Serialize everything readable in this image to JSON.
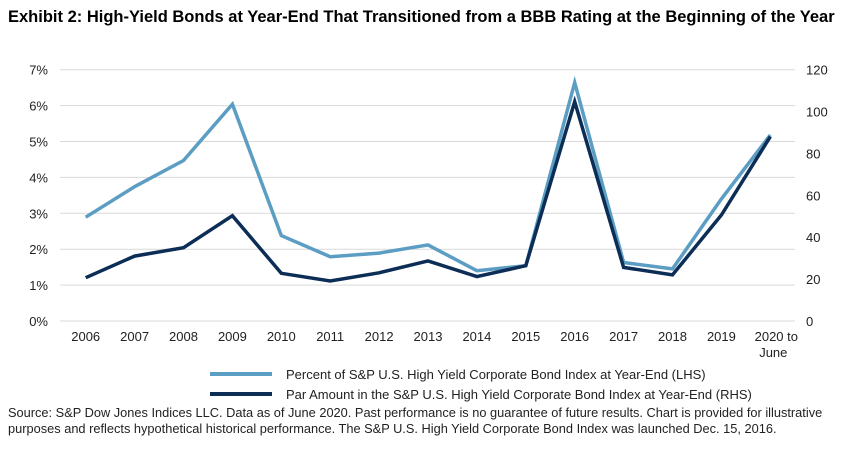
{
  "title": "Exhibit 2: High-Yield Bonds at Year-End That Transitioned from a BBB Rating at the Beginning of the Year",
  "source": "Source: S&P Dow Jones Indices LLC. Data as of June 2020. Past performance is no guarantee of future results. Chart is provided for illustrative purposes and reflects hypothetical historical performance. The S&P U.S. High Yield Corporate Bond Index was launched Dec. 15, 2016.",
  "chart_data": {
    "type": "line",
    "categories": [
      "2006",
      "2007",
      "2008",
      "2009",
      "2010",
      "2011",
      "2012",
      "2013",
      "2014",
      "2015",
      "2016",
      "2017",
      "2018",
      "2019",
      "2020 to June"
    ],
    "left_axis": {
      "ticks": [
        "0%",
        "1%",
        "2%",
        "3%",
        "4%",
        "5%",
        "6%",
        "7%"
      ],
      "ylim": [
        0,
        7
      ]
    },
    "right_axis": {
      "ticks": [
        "0",
        "20",
        "40",
        "60",
        "80",
        "100",
        "120"
      ],
      "ylim": [
        0,
        120
      ]
    },
    "grid": true,
    "legend_placement": "bottom",
    "series": [
      {
        "name": "Percent of S&P U.S. High Yield Corporate Bond Index at Year-End (LHS)",
        "axis": "left",
        "color": "#5b9dc3",
        "values": [
          2.89,
          3.74,
          4.47,
          6.04,
          2.38,
          1.79,
          1.89,
          2.12,
          1.4,
          1.54,
          6.64,
          1.63,
          1.45,
          3.4,
          5.18
        ]
      },
      {
        "name": "Par Amount in the S&P U.S. High Yield Corporate Bond Index at Year-End (RHS)",
        "axis": "right",
        "color": "#0c2d56",
        "values": [
          20.7,
          31,
          35,
          50.3,
          22.8,
          19.1,
          23,
          28.7,
          21.2,
          26.4,
          104.7,
          25.6,
          22,
          50.6,
          88
        ]
      }
    ]
  }
}
